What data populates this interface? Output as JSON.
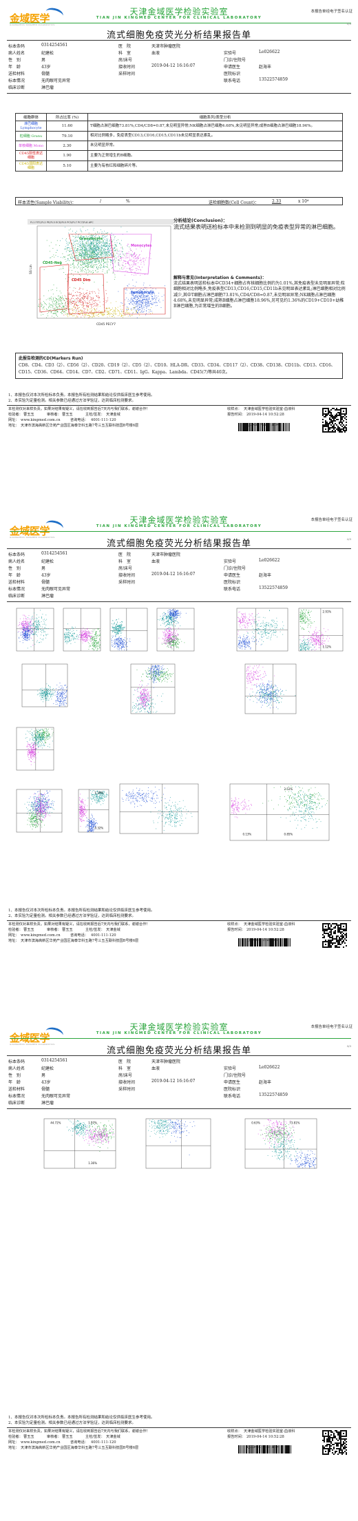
{
  "header": {
    "lab_name_cn": "天津金域医学检验实验室",
    "lab_name_en": "TIAN JIN KINGMED CENTER FOR CLINICAL LABORATORY",
    "report_title": "流式细胞免疫荧光分析结果报告单",
    "notice": "本报告单经电子签名认证",
    "logo_text": "金域医学",
    "logo_sub": "GUANGZHOU KINGMED DIAGNOSTICS",
    "page1_num": "1/3",
    "page2_num": "2/3",
    "page3_num": "3/3"
  },
  "patient": {
    "labels": {
      "sample_no": "标本条码",
      "patient_name": "病人姓名",
      "gender": "性　别",
      "age": "年　龄",
      "specimen": "送检材料",
      "specimen_status": "标本情况",
      "diagnosis": "临床诊断",
      "hospital": "医　院",
      "department": "科　室",
      "bed": "房/床号",
      "received": "接收时间",
      "collected": "采样时间",
      "lab_no": "实验号",
      "clinic": "门诊/住院号",
      "doctor": "申请医生",
      "hospital_id": "医院标识",
      "phone": "联系电话"
    },
    "sample_no": "0314254561",
    "patient_name": "纪建松",
    "gender": "男",
    "age": "43岁",
    "specimen": "骨髓",
    "specimen_status": "无肉眼可见异常",
    "diagnosis": "淋巴瘤",
    "hospital": "天津市肿瘤医院",
    "department": "血液",
    "bed": "",
    "received": "2019-04-12 16:16:07",
    "collected": "",
    "lab_no": "Le026622",
    "clinic": "",
    "doctor": "赵海丰",
    "hospital_id": "",
    "phone": "13522574859"
  },
  "cell_table": {
    "headers": [
      "细胞群体",
      "所占比率 (%)",
      "细胞系列/表型分析"
    ],
    "rows": [
      {
        "name": "淋巴细胞 Lymphocyte",
        "color": "#1f4fd6",
        "pct": "11.60",
        "desc": "T细胞占淋巴细胞73.81%,CD4/CD8=0.87,未见明显异常;NK细胞占淋巴细胞4.68%,未见明显异常;成熟B细胞占淋巴细胞18.96%。"
      },
      {
        "name": "粒细胞 Granu",
        "color": "#2aa53c",
        "pct": "79.10",
        "desc": "相对比例略多，免疫表型CD13,CD16,CD15,CD11b未见明显表达紊乱。"
      },
      {
        "name": "单核细胞 Mono",
        "color": "#d63adf",
        "pct": "2.30",
        "desc": "未见明显异常。"
      },
      {
        "name": "CD45阴性表达细胞",
        "color": "#d62020",
        "pct": "1.90",
        "desc": "主要为正常增生的B细胞。"
      },
      {
        "name": "CD45弱阳表达细胞",
        "color": "#c7b000",
        "pct": "5.10",
        "desc": "主要为有核红和细胞碎片等。"
      }
    ]
  },
  "viability": {
    "label": "样本活性(Sample Viability)：",
    "value": "/",
    "unit": "%",
    "count_label": "送检细胞数(Cell Count)：",
    "count_value": "2.33",
    "count_unit": "x 10⁴"
  },
  "scatter": {
    "xlabel": "CD45 PECY7",
    "ylabel": "SS Lin",
    "header_text": "FL1 FITC/FL2 PE/FL3 ECD/FL5 PC5/FL7 PC7/FL8 APC",
    "gates": [
      "Granulocyte",
      "Monocytes",
      "CD45-Neg",
      "CD45 Dim",
      "Lymphocyte"
    ]
  },
  "conclusion": {
    "heading": "分析结论(Conclusion)：",
    "text": "流式结果表明送检标本中未检测到明显的免疫表型异常的淋巴细胞。"
  },
  "interpretation": {
    "heading": "解释与意见(Interpretation & Comments)：",
    "text": "流式结果表明送检标本中CD34+细胞占有核细胞比例约为1.01%,其免疫表型未见明显异常;粒细胞相对比例略多,免疫表型CD13,CD16,CD15,CD11b未见明显表达紊乱;淋巴细胞相对比例减少,其中T细胞占淋巴细胞73.81%,CD4/CD8=0.87,未见明显异常;NK细胞占淋巴细胞4.68%,未见明显异常;成熟B细胞占淋巴细胞18.96%,另可见约1.36%的CD19+CD10+幼稚B淋巴细胞,为正常增生的B细胞。"
  },
  "markers": {
    "heading": "此报告检测的CD(Markers Run)",
    "text": "CD8、CD4、CD3（2）、CD56（2）、CD20、CD19（2）、CD5（2）、CD10、HLA-DR、CD33、CD34、CD117（2）、CD38、CD138、CD11b、CD13、CD16、CD15、CD36、CD64、CD14、CD7、CD2、CD71、CD11、IgG、Kappa、Lambda、CD45(7)等共40次。"
  },
  "footnotes": [
    "1、本报告仅对本次所检标本负责。本报告所有检测结果和结论仅供临床医生参考使用。",
    "2、本实验为定量检测。相关参数已经通过方法学验证，达到临床检测要求。"
  ],
  "footer": {
    "statement": "本检测仅对来样负责。如果对结果有疑义，请在收到报告后7天内与我们联系，谢谢合作！",
    "examiner_label": "检验者：",
    "examiner": "曹玉玉",
    "reviewer_label": "审核者：",
    "reviewer": "曹玉玉",
    "auditor_label": "主检/签发：",
    "auditor": "天津金域",
    "receiver_label": "收样点：",
    "receiver": "天津金域医学检验实验室-血液科",
    "report_time_label": "报告时间：",
    "report_time": "2019-04-14 10:52:28",
    "website_label": "网址：",
    "website": "www.kingmed.com.cn",
    "hotline_label": "咨询电话：",
    "hotline": "4001-111-120",
    "address_label": "地址：",
    "address": "天津市滨海高新区华苑产业园区海泰华科五路7号三五互联科技园B号楼6层",
    "barcode_no": "TJ00001715561169"
  },
  "page2_panels": [
    {
      "labels": []
    },
    {
      "labels": []
    },
    {
      "labels": []
    },
    {
      "labels": []
    },
    {
      "labels": []
    },
    {
      "labels": [
        "2.91%",
        "1.12%"
      ]
    },
    {
      "labels": []
    },
    {
      "labels": []
    },
    {
      "labels": []
    },
    {
      "labels": []
    },
    {
      "labels": []
    },
    {
      "labels": []
    },
    {
      "labels": [
        "1.29%",
        "0.32%"
      ]
    },
    {
      "labels": [
        "2.51%",
        "0.85%",
        "0.13%"
      ]
    }
  ],
  "page3_panels": [
    {
      "labels": [
        "44.72%",
        "1.97%",
        "1.36%"
      ]
    },
    {
      "labels": []
    },
    {
      "labels": [
        "0.63%",
        "73.81%"
      ]
    }
  ],
  "colors": {
    "green": "#2aa53c",
    "blue": "#1f4fd6",
    "magenta": "#d63adf",
    "red": "#d62020",
    "cyan": "#1a9c9c",
    "yellow": "#c7b000"
  }
}
